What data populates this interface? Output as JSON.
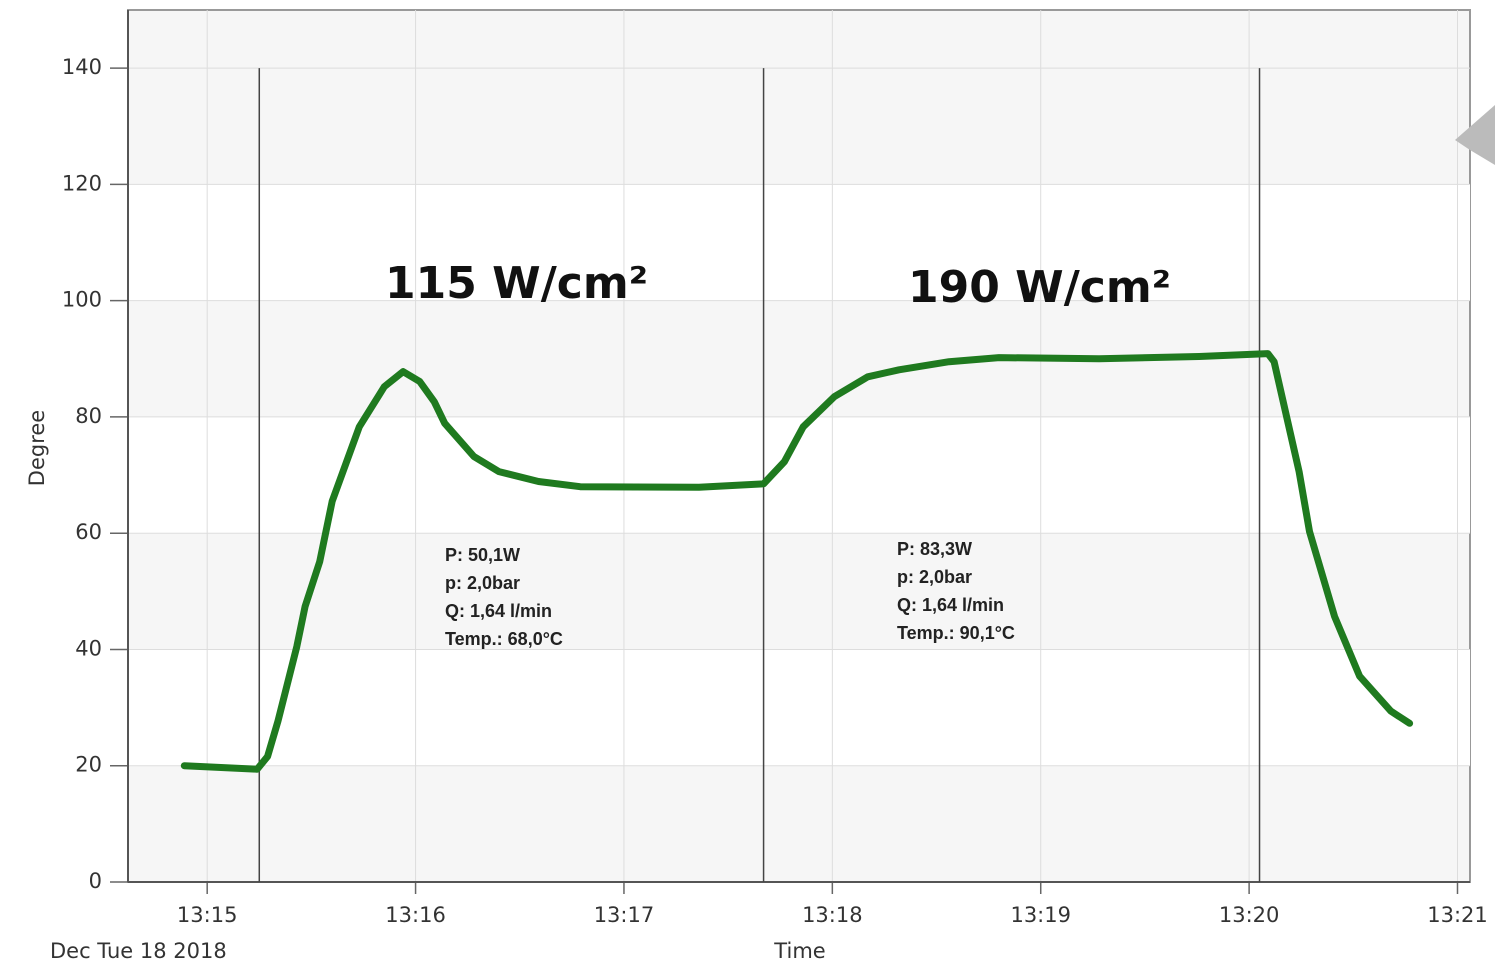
{
  "chart_data": {
    "type": "line",
    "x_label": "Time",
    "y_label": "Degree",
    "date_label": "Dec Tue 18 2018",
    "x": [
      794.89,
      795.24,
      795.29,
      795.34,
      795.43,
      795.47,
      795.54,
      795.6,
      795.73,
      795.85,
      795.94,
      796.02,
      796.09,
      796.14,
      796.28,
      796.4,
      796.59,
      796.79,
      797.36,
      797.67,
      797.77,
      797.86,
      798.01,
      798.17,
      798.32,
      798.56,
      798.8,
      799.28,
      799.76,
      800.09,
      800.12,
      800.24,
      800.29,
      800.41,
      800.53,
      800.68,
      800.77
    ],
    "values": [
      20.0,
      19.4,
      21.6,
      27.7,
      40.5,
      47.4,
      55.1,
      65.5,
      78.3,
      85.2,
      87.8,
      86.1,
      82.6,
      78.9,
      73.2,
      70.6,
      68.9,
      68.0,
      67.9,
      68.5,
      72.3,
      78.3,
      83.5,
      86.9,
      88.1,
      89.5,
      90.2,
      90.0,
      90.4,
      90.9,
      89.5,
      70.6,
      60.3,
      45.7,
      35.4,
      29.4,
      27.3
    ],
    "color": "#1f7a1f",
    "markers": [
      795.25,
      797.67,
      800.05
    ],
    "xlim": [
      794.62,
      801.06
    ],
    "ylim": [
      0,
      150
    ],
    "xticks": [
      {
        "value": 795,
        "label": "13:15"
      },
      {
        "value": 796,
        "label": "13:16"
      },
      {
        "value": 797,
        "label": "13:17"
      },
      {
        "value": 798,
        "label": "13:18"
      },
      {
        "value": 799,
        "label": "13:19"
      },
      {
        "value": 800,
        "label": "13:20"
      },
      {
        "value": 801,
        "label": "13:21"
      }
    ],
    "yticks": [
      0,
      20,
      40,
      60,
      80,
      100,
      120,
      140
    ],
    "grid": true,
    "annotations": [
      "115 W/cm²",
      "190 W/cm²"
    ],
    "notes": [
      [
        "P: 50,1W",
        "p: 2,0bar",
        "Q: 1,64 l/min",
        "Temp.: 68,0°C"
      ],
      [
        "P: 83,3W",
        "p: 2,0bar",
        "Q: 1,64 l/min",
        "Temp.: 90,1°C"
      ]
    ]
  }
}
